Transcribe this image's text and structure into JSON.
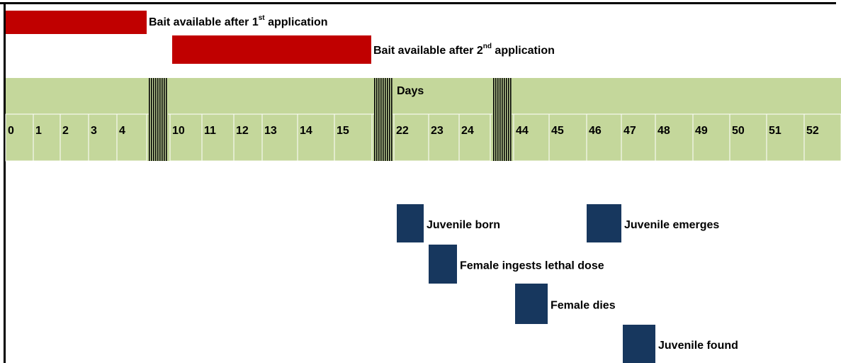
{
  "bait_bars": [
    {
      "label_main": "Bait available after 1",
      "label_sup": "st",
      "label_end": " application"
    },
    {
      "label_main": "Bait available after 2",
      "label_sup": "nd",
      "label_end": " application"
    }
  ],
  "timeline": {
    "header": "Days",
    "days": [
      0,
      1,
      2,
      3,
      4,
      10,
      11,
      12,
      13,
      14,
      15,
      22,
      23,
      24,
      44,
      45,
      46,
      47,
      48,
      49,
      50,
      51,
      52
    ]
  },
  "events": [
    {
      "label": "Juvenile born"
    },
    {
      "label": "Juvenile emerges"
    },
    {
      "label": "Female ingests lethal dose"
    },
    {
      "label": "Female dies"
    },
    {
      "label": "Juvenile found"
    }
  ]
}
